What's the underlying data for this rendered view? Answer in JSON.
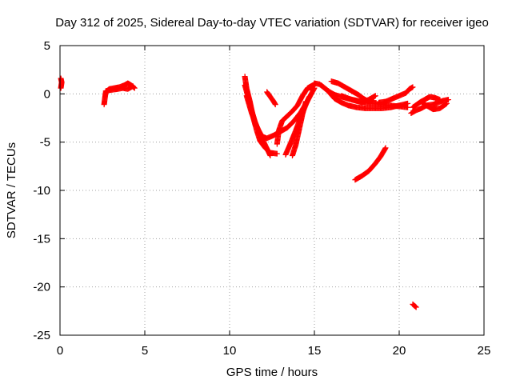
{
  "chart_data": {
    "type": "scatter",
    "title": "Day 312 of 2025, Sidereal Day-to-day VTEC variation (SDTVAR) for receiver igeo",
    "xlabel": "GPS time / hours",
    "ylabel": "SDTVAR / TECUs",
    "xlim": [
      0,
      25
    ],
    "ylim": [
      -25,
      5
    ],
    "xticks": [
      0,
      5,
      10,
      15,
      20,
      25
    ],
    "yticks": [
      5,
      0,
      -5,
      -10,
      -15,
      -20,
      -25
    ],
    "grid": true,
    "marker": "+",
    "series": [
      {
        "name": "SDTVAR",
        "color": "#ff0000",
        "segments": [
          [
            [
              0.05,
              1.6
            ],
            [
              0.1,
              1.2
            ],
            [
              0.05,
              0.6
            ]
          ],
          [
            [
              2.6,
              -1.1
            ],
            [
              2.65,
              -0.4
            ],
            [
              2.7,
              0.2
            ],
            [
              2.9,
              0.5
            ],
            [
              3.2,
              0.6
            ],
            [
              3.5,
              0.7
            ],
            [
              3.8,
              0.9
            ],
            [
              4.0,
              1.1
            ],
            [
              4.2,
              0.9
            ],
            [
              4.4,
              0.6
            ]
          ],
          [
            [
              2.7,
              0.3
            ],
            [
              3.0,
              0.4
            ],
            [
              3.4,
              0.5
            ],
            [
              3.7,
              0.6
            ],
            [
              4.0,
              0.5
            ],
            [
              4.3,
              0.8
            ]
          ],
          [
            [
              10.9,
              1.8
            ],
            [
              11.0,
              0.6
            ],
            [
              11.2,
              -0.8
            ],
            [
              11.4,
              -2.5
            ],
            [
              11.6,
              -3.8
            ],
            [
              11.8,
              -4.9
            ],
            [
              12.1,
              -5.6
            ],
            [
              12.4,
              -6.1
            ],
            [
              12.8,
              -6.2
            ]
          ],
          [
            [
              10.9,
              0.9
            ],
            [
              11.1,
              -0.4
            ],
            [
              11.3,
              -1.7
            ],
            [
              11.5,
              -2.9
            ],
            [
              11.8,
              -4.2
            ],
            [
              12.1,
              -5.3
            ],
            [
              12.4,
              -6.4
            ]
          ],
          [
            [
              11.0,
              -0.2
            ],
            [
              11.3,
              -2.0
            ],
            [
              11.6,
              -3.4
            ],
            [
              11.9,
              -4.4
            ],
            [
              12.2,
              -4.6
            ],
            [
              12.6,
              -4.3
            ],
            [
              13.0,
              -3.9
            ],
            [
              13.4,
              -3.5
            ],
            [
              13.8,
              -2.8
            ],
            [
              14.2,
              -1.9
            ],
            [
              14.6,
              -0.7
            ],
            [
              15.0,
              0.6
            ]
          ],
          [
            [
              12.2,
              0.2
            ],
            [
              12.4,
              -0.3
            ],
            [
              12.6,
              -0.8
            ],
            [
              12.7,
              -1.1
            ]
          ],
          [
            [
              12.8,
              -5.2
            ],
            [
              12.9,
              -3.8
            ],
            [
              13.1,
              -2.8
            ],
            [
              13.4,
              -2.3
            ],
            [
              13.7,
              -1.8
            ],
            [
              14.0,
              -1.2
            ],
            [
              14.3,
              -0.2
            ],
            [
              14.6,
              0.6
            ],
            [
              14.9,
              0.9
            ]
          ],
          [
            [
              13.3,
              -6.3
            ],
            [
              13.6,
              -5.1
            ],
            [
              13.9,
              -3.8
            ],
            [
              14.2,
              -2.4
            ],
            [
              14.5,
              -1.1
            ],
            [
              14.7,
              -0.3
            ]
          ],
          [
            [
              13.7,
              -6.4
            ],
            [
              13.9,
              -5.3
            ],
            [
              14.1,
              -3.7
            ],
            [
              14.3,
              -2.1
            ],
            [
              14.5,
              -0.8
            ]
          ],
          [
            [
              14.8,
              0.4
            ],
            [
              15.0,
              1.1
            ],
            [
              15.3,
              1.0
            ],
            [
              15.6,
              0.6
            ],
            [
              15.9,
              0.2
            ],
            [
              16.2,
              -0.1
            ],
            [
              16.6,
              -0.3
            ],
            [
              17.0,
              -0.5
            ],
            [
              17.5,
              -0.7
            ],
            [
              18.0,
              -0.9
            ],
            [
              18.5,
              -1.0
            ],
            [
              19.0,
              -1.1
            ],
            [
              19.5,
              -1.2
            ],
            [
              20.0,
              -1.3
            ],
            [
              20.5,
              -1.4
            ]
          ],
          [
            [
              15.4,
              0.9
            ],
            [
              15.8,
              0.3
            ],
            [
              16.2,
              -0.5
            ],
            [
              16.6,
              -0.9
            ],
            [
              17.0,
              -1.2
            ],
            [
              17.5,
              -1.4
            ],
            [
              18.0,
              -1.5
            ],
            [
              18.5,
              -1.5
            ],
            [
              19.0,
              -1.5
            ],
            [
              19.5,
              -1.4
            ],
            [
              20.0,
              -1.2
            ],
            [
              20.5,
              -1.0
            ]
          ],
          [
            [
              16.0,
              1.3
            ],
            [
              16.4,
              1.1
            ],
            [
              16.8,
              0.7
            ],
            [
              17.2,
              0.3
            ],
            [
              17.6,
              -0.1
            ],
            [
              17.9,
              -0.5
            ],
            [
              18.2,
              -0.8
            ],
            [
              18.5,
              -0.7
            ]
          ],
          [
            [
              16.6,
              -0.2
            ],
            [
              17.2,
              -0.6
            ],
            [
              17.8,
              -0.9
            ],
            [
              18.2,
              -0.6
            ],
            [
              18.6,
              -0.2
            ]
          ],
          [
            [
              18.8,
              -0.9
            ],
            [
              19.2,
              -0.8
            ],
            [
              19.6,
              -0.5
            ],
            [
              20.0,
              -0.2
            ],
            [
              20.4,
              0.1
            ],
            [
              20.6,
              0.5
            ],
            [
              20.8,
              0.7
            ]
          ],
          [
            [
              17.4,
              -8.9
            ],
            [
              17.8,
              -8.5
            ],
            [
              18.2,
              -8.0
            ],
            [
              18.6,
              -7.2
            ],
            [
              18.9,
              -6.5
            ],
            [
              19.2,
              -5.6
            ]
          ],
          [
            [
              20.7,
              -2.0
            ],
            [
              21.0,
              -1.7
            ],
            [
              21.3,
              -1.5
            ],
            [
              21.6,
              -1.2
            ],
            [
              22.0,
              -1.1
            ],
            [
              22.3,
              -0.9
            ],
            [
              22.6,
              -0.7
            ],
            [
              22.9,
              -0.6
            ]
          ],
          [
            [
              20.8,
              -1.4
            ],
            [
              21.2,
              -0.9
            ],
            [
              21.5,
              -0.6
            ],
            [
              21.8,
              -0.3
            ],
            [
              22.1,
              -0.4
            ],
            [
              22.4,
              -0.6
            ]
          ],
          [
            [
              21.3,
              -0.8
            ],
            [
              21.6,
              -1.2
            ],
            [
              22.0,
              -1.6
            ],
            [
              22.4,
              -1.5
            ],
            [
              22.8,
              -1.0
            ]
          ],
          [
            [
              20.8,
              -21.8
            ],
            [
              21.0,
              -22.1
            ]
          ]
        ]
      }
    ]
  }
}
